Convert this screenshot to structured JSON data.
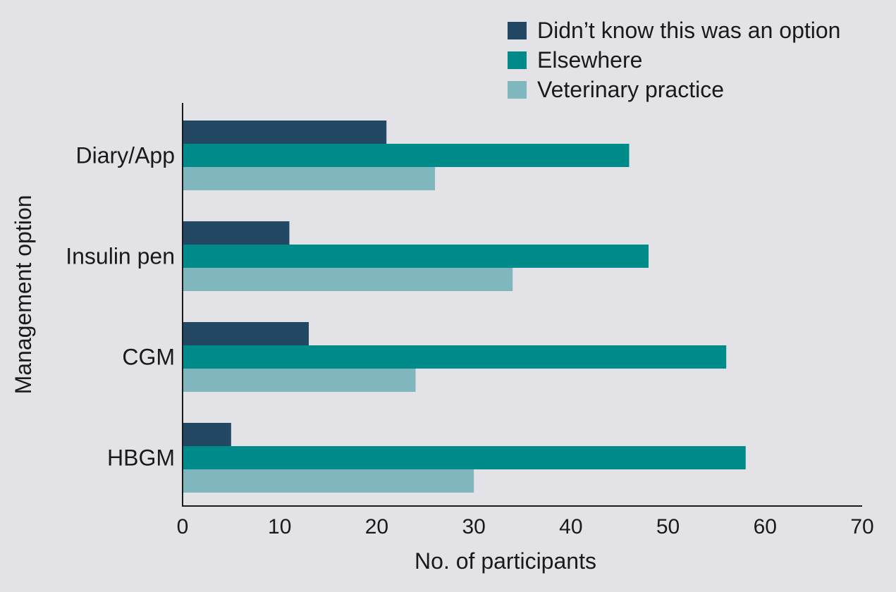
{
  "chart_data": {
    "type": "bar",
    "orientation": "horizontal",
    "categories": [
      "Diary/App",
      "Insulin pen",
      "CGM",
      "HBGM"
    ],
    "series": [
      {
        "name": "Didn’t know this was an option",
        "color": "#234863",
        "values": [
          21,
          11,
          13,
          5
        ]
      },
      {
        "name": "Elsewhere",
        "color": "#008b8b",
        "values": [
          46,
          48,
          56,
          58
        ]
      },
      {
        "name": "Veterinary practice",
        "color": "#80b7be",
        "values": [
          26,
          34,
          24,
          30
        ]
      }
    ],
    "xlabel": "No. of participants",
    "ylabel": "Management option",
    "xlim": [
      0,
      70
    ],
    "xticks": [
      0,
      10,
      20,
      30,
      40,
      50,
      60,
      70
    ],
    "grid": false,
    "legend_position": "top-right"
  }
}
